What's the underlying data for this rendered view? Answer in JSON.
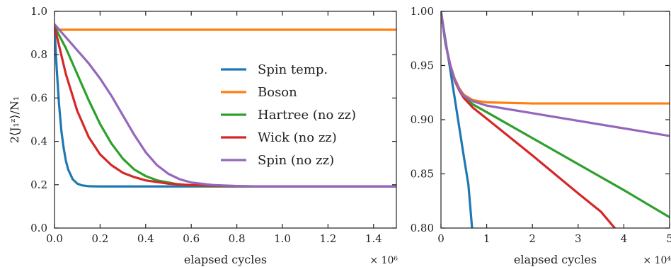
{
  "chart_data": [
    {
      "type": "line",
      "panel": "left",
      "ylabel": "2⟨J₁ᶻ⟩/N₁",
      "xlabel": "elapsed cycles",
      "x_multiplier": "× 10⁶",
      "xlim": [
        0,
        1.5
      ],
      "ylim": [
        0,
        1.0
      ],
      "xticks": [
        "0.0",
        "0.2",
        "0.4",
        "0.6",
        "0.8",
        "1.0",
        "1.2",
        "1.4"
      ],
      "yticks": [
        "0.0",
        "0.2",
        "0.4",
        "0.6",
        "0.8",
        "1.0"
      ],
      "legend_position": "center-right",
      "series": [
        {
          "name": "Spin temp.",
          "color": "#1f77b4",
          "x": [
            0,
            0.01,
            0.02,
            0.03,
            0.04,
            0.05,
            0.06,
            0.08,
            0.1,
            0.12,
            0.15,
            0.2,
            0.3,
            0.5,
            1.0,
            1.5
          ],
          "y": [
            0.92,
            0.73,
            0.57,
            0.45,
            0.37,
            0.31,
            0.27,
            0.225,
            0.205,
            0.197,
            0.193,
            0.192,
            0.192,
            0.192,
            0.192,
            0.192
          ]
        },
        {
          "name": "Boson",
          "color": "#ff7f0e",
          "x": [
            0,
            0.3,
            0.6,
            0.9,
            1.2,
            1.5
          ],
          "y": [
            0.915,
            0.915,
            0.915,
            0.915,
            0.915,
            0.915
          ]
        },
        {
          "name": "Hartree (no zz)",
          "color": "#2ca02c",
          "x": [
            0,
            0.05,
            0.1,
            0.15,
            0.2,
            0.25,
            0.3,
            0.35,
            0.4,
            0.45,
            0.5,
            0.55,
            0.6,
            0.7,
            0.8,
            1.0,
            1.5
          ],
          "y": [
            0.93,
            0.83,
            0.71,
            0.59,
            0.48,
            0.39,
            0.32,
            0.27,
            0.24,
            0.22,
            0.21,
            0.2,
            0.197,
            0.193,
            0.192,
            0.192,
            0.192
          ]
        },
        {
          "name": "Wick (no zz)",
          "color": "#d62728",
          "x": [
            0,
            0.05,
            0.1,
            0.15,
            0.2,
            0.25,
            0.3,
            0.35,
            0.4,
            0.5,
            0.6,
            0.7,
            0.8,
            1.0,
            1.5
          ],
          "y": [
            0.93,
            0.71,
            0.54,
            0.42,
            0.34,
            0.29,
            0.255,
            0.235,
            0.22,
            0.205,
            0.198,
            0.195,
            0.193,
            0.192,
            0.192
          ]
        },
        {
          "name": "Spin (no zz)",
          "color": "#9467bd",
          "x": [
            0,
            0.05,
            0.1,
            0.15,
            0.2,
            0.25,
            0.3,
            0.35,
            0.4,
            0.45,
            0.5,
            0.55,
            0.6,
            0.7,
            0.8,
            0.9,
            1.0,
            1.5
          ],
          "y": [
            0.94,
            0.88,
            0.82,
            0.76,
            0.69,
            0.61,
            0.52,
            0.43,
            0.35,
            0.29,
            0.25,
            0.225,
            0.21,
            0.198,
            0.194,
            0.192,
            0.192,
            0.192
          ]
        }
      ]
    },
    {
      "type": "line",
      "panel": "right",
      "xlabel": "elapsed cycles",
      "x_multiplier": "× 10⁴",
      "xlim": [
        0,
        5
      ],
      "ylim": [
        0.8,
        1.0
      ],
      "xticks": [
        "0",
        "1",
        "2",
        "3",
        "4",
        "5"
      ],
      "yticks": [
        "0.80",
        "0.85",
        "0.90",
        "0.95",
        "1.00"
      ],
      "series": [
        {
          "name": "Spin temp.",
          "color": "#1f77b4",
          "x": [
            0,
            0.1,
            0.2,
            0.3,
            0.4,
            0.5,
            0.6,
            0.68
          ],
          "y": [
            1.0,
            0.973,
            0.947,
            0.92,
            0.893,
            0.866,
            0.84,
            0.8
          ]
        },
        {
          "name": "Boson",
          "color": "#ff7f0e",
          "x": [
            0,
            0.1,
            0.2,
            0.3,
            0.4,
            0.5,
            0.7,
            1.0,
            2.0,
            3.0,
            4.0,
            5.0
          ],
          "y": [
            1.0,
            0.97,
            0.951,
            0.938,
            0.929,
            0.923,
            0.918,
            0.916,
            0.915,
            0.915,
            0.915,
            0.915
          ]
        },
        {
          "name": "Hartree (no zz)",
          "color": "#2ca02c",
          "x": [
            0,
            0.1,
            0.2,
            0.3,
            0.4,
            0.5,
            0.7,
            1.0,
            2.0,
            3.0,
            4.0,
            5.0
          ],
          "y": [
            1.0,
            0.97,
            0.951,
            0.937,
            0.928,
            0.921,
            0.914,
            0.907,
            0.883,
            0.859,
            0.835,
            0.81
          ]
        },
        {
          "name": "Wick (no zz)",
          "color": "#d62728",
          "x": [
            0,
            0.1,
            0.2,
            0.3,
            0.4,
            0.5,
            0.7,
            1.0,
            2.0,
            3.0,
            3.5,
            3.8
          ],
          "y": [
            1.0,
            0.97,
            0.951,
            0.936,
            0.927,
            0.92,
            0.911,
            0.901,
            0.867,
            0.832,
            0.815,
            0.8
          ]
        },
        {
          "name": "Spin (no zz)",
          "color": "#9467bd",
          "x": [
            0,
            0.1,
            0.2,
            0.3,
            0.4,
            0.5,
            0.7,
            1.0,
            2.0,
            3.0,
            4.0,
            5.0
          ],
          "y": [
            1.0,
            0.97,
            0.951,
            0.937,
            0.928,
            0.922,
            0.917,
            0.913,
            0.906,
            0.899,
            0.892,
            0.885
          ]
        }
      ]
    }
  ]
}
